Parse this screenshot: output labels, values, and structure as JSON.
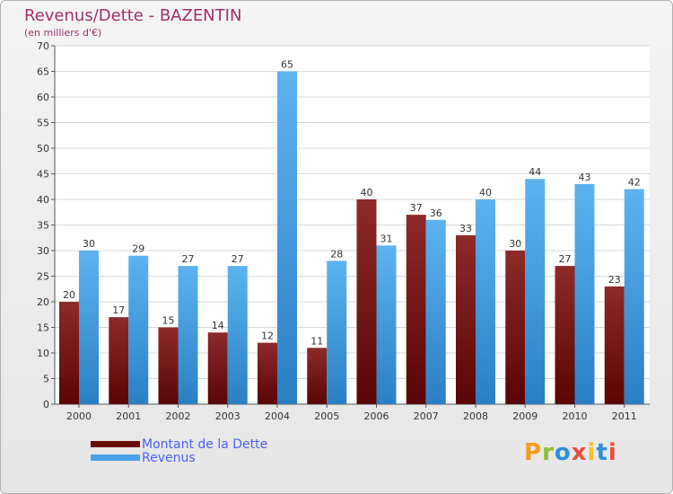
{
  "chart_data": {
    "type": "bar",
    "title": "Revenus/Dette - BAZENTIN",
    "subtitle": "(en milliers d'€)",
    "categories": [
      "2000",
      "2001",
      "2002",
      "2003",
      "2004",
      "2005",
      "2006",
      "2007",
      "2008",
      "2009",
      "2010",
      "2011"
    ],
    "series": [
      {
        "name": "Montant de la Dette",
        "color": "#7a0f0f",
        "values": [
          20,
          17,
          15,
          14,
          12,
          11,
          40,
          37,
          33,
          30,
          27,
          23
        ]
      },
      {
        "name": "Revenus",
        "color": "#4aa3e8",
        "values": [
          30,
          29,
          27,
          27,
          65,
          28,
          31,
          36,
          40,
          44,
          43,
          42
        ]
      }
    ],
    "ylim": [
      0,
      70
    ],
    "yticks": [
      0,
      5,
      10,
      15,
      20,
      25,
      30,
      35,
      40,
      45,
      50,
      55,
      60,
      65,
      70
    ],
    "grid": true,
    "legend": "bottom-left"
  },
  "logo": {
    "letters": [
      "P",
      "r",
      "o",
      "x",
      "i",
      "t",
      "i"
    ],
    "colors": [
      "#f39c1f",
      "#8fbf2a",
      "#2f8fd8",
      "#e84c3d",
      "#f2c12e",
      "#2f8fd8",
      "#e84c3d"
    ]
  }
}
